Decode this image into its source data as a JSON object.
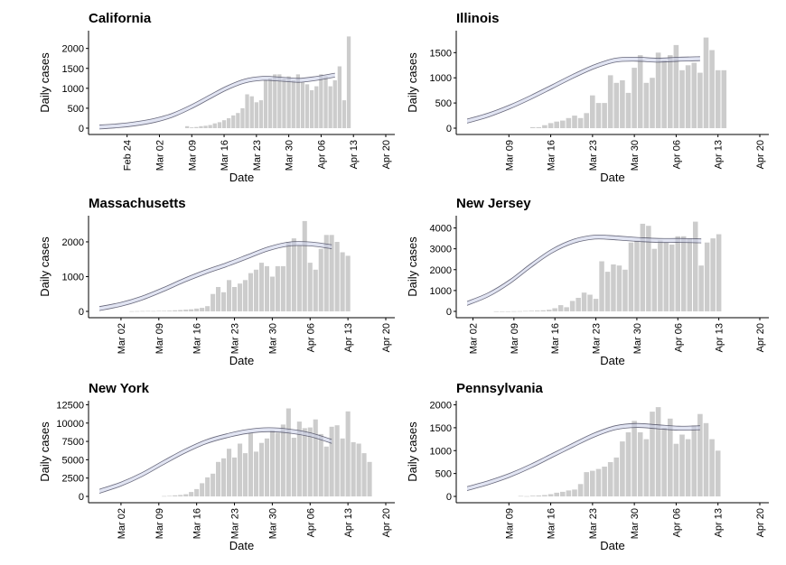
{
  "figure": {
    "xlabel": "Date",
    "ylabel": "Daily cases"
  },
  "chart_data": [
    {
      "type": "bar",
      "title": "California",
      "xlabel": "Date",
      "ylabel": "Daily cases",
      "x_start": "2020-02-18",
      "x_end": "2020-04-20",
      "ylim": [
        0,
        2400
      ],
      "x_ticks": [
        "Feb 24",
        "Mar 02",
        "Mar 09",
        "Mar 16",
        "Mar 23",
        "Mar 30",
        "Apr 06",
        "Apr 13",
        "Apr 20"
      ],
      "x_tick_dates": [
        "2020-02-24",
        "2020-03-02",
        "2020-03-09",
        "2020-03-16",
        "2020-03-23",
        "2020-03-30",
        "2020-04-06",
        "2020-04-13",
        "2020-04-20"
      ],
      "y_ticks": [
        0,
        500,
        1000,
        1500,
        2000
      ],
      "bars_start": "2020-03-08",
      "values": [
        50,
        20,
        30,
        50,
        60,
        80,
        120,
        150,
        200,
        250,
        320,
        380,
        500,
        850,
        800,
        650,
        700,
        1200,
        1250,
        1350,
        1350,
        1250,
        1300,
        1200,
        1350,
        1150,
        1100,
        950,
        1050,
        1350,
        1300,
        1050,
        1200,
        1550,
        700,
        2300
      ],
      "fit": {
        "start": "2020-02-18",
        "end": "2020-04-09",
        "values": [
          30,
          60,
          110,
          190,
          320,
          520,
          760,
          1000,
          1180,
          1250,
          1230,
          1200,
          1250,
          1330
        ]
      }
    },
    {
      "type": "bar",
      "title": "Illinois",
      "xlabel": "Date",
      "ylabel": "Daily cases",
      "x_start": "2020-03-02",
      "x_end": "2020-04-20",
      "ylim": [
        0,
        1900
      ],
      "x_ticks": [
        "Mar 09",
        "Mar 16",
        "Mar 23",
        "Mar 30",
        "Apr 06",
        "Apr 13",
        "Apr 20"
      ],
      "x_tick_dates": [
        "2020-03-09",
        "2020-03-16",
        "2020-03-23",
        "2020-03-30",
        "2020-04-06",
        "2020-04-13",
        "2020-04-20"
      ],
      "y_ticks": [
        0,
        500,
        1000,
        1500
      ],
      "bars_start": "2020-03-13",
      "values": [
        20,
        20,
        60,
        100,
        130,
        150,
        200,
        250,
        200,
        300,
        650,
        500,
        500,
        1050,
        900,
        950,
        700,
        1200,
        1450,
        900,
        1000,
        1500,
        1350,
        1450,
        1650,
        1150,
        1250,
        1300,
        1100,
        1800,
        1550,
        1150,
        1150
      ],
      "fit": {
        "start": "2020-03-02",
        "end": "2020-04-10",
        "values": [
          140,
          260,
          420,
          610,
          820,
          1030,
          1220,
          1350,
          1370,
          1350,
          1370,
          1380
        ]
      }
    },
    {
      "type": "bar",
      "title": "Massachusetts",
      "xlabel": "Date",
      "ylabel": "Daily cases",
      "x_start": "2020-02-27",
      "x_end": "2020-04-20",
      "ylim": [
        0,
        2700
      ],
      "x_ticks": [
        "Mar 02",
        "Mar 09",
        "Mar 16",
        "Mar 23",
        "Mar 30",
        "Apr 06",
        "Apr 13",
        "Apr 20"
      ],
      "x_tick_dates": [
        "2020-03-02",
        "2020-03-09",
        "2020-03-16",
        "2020-03-23",
        "2020-03-30",
        "2020-04-06",
        "2020-04-13",
        "2020-04-20"
      ],
      "y_ticks": [
        0,
        1000,
        2000
      ],
      "bars_start": "2020-03-04",
      "values": [
        5,
        8,
        10,
        12,
        10,
        15,
        15,
        20,
        30,
        40,
        50,
        60,
        80,
        100,
        150,
        500,
        700,
        550,
        900,
        700,
        800,
        900,
        1100,
        1200,
        1400,
        1300,
        1000,
        1300,
        1300,
        2000,
        2100,
        1900,
        2600,
        1400,
        1200,
        1800,
        2200,
        2200,
        2000,
        1700,
        1600
      ],
      "fit": {
        "start": "2020-02-27",
        "end": "2020-04-10",
        "values": [
          80,
          200,
          380,
          620,
          890,
          1130,
          1340,
          1570,
          1800,
          1940,
          1940,
          1860
        ]
      }
    },
    {
      "type": "bar",
      "title": "New Jersey",
      "xlabel": "Date",
      "ylabel": "Daily cases",
      "x_start": "2020-03-01",
      "x_end": "2020-04-20",
      "ylim": [
        0,
        4500
      ],
      "x_ticks": [
        "Mar 02",
        "Mar 09",
        "Mar 16",
        "Mar 23",
        "Mar 30",
        "Apr 06",
        "Apr 13",
        "Apr 20"
      ],
      "x_tick_dates": [
        "2020-03-02",
        "2020-03-09",
        "2020-03-16",
        "2020-03-23",
        "2020-03-30",
        "2020-04-06",
        "2020-04-13",
        "2020-04-20"
      ],
      "y_ticks": [
        0,
        1000,
        2000,
        3000,
        4000
      ],
      "bars_start": "2020-03-06",
      "values": [
        5,
        5,
        5,
        10,
        15,
        20,
        30,
        40,
        50,
        80,
        150,
        300,
        200,
        500,
        650,
        900,
        800,
        600,
        2400,
        1900,
        2250,
        2200,
        2000,
        3300,
        3400,
        4200,
        4100,
        3000,
        3400,
        3300,
        3200,
        3600,
        3600,
        3500,
        4300,
        2200,
        3300,
        3500,
        3700
      ],
      "fit": {
        "start": "2020-03-01",
        "end": "2020-04-10",
        "values": [
          380,
          800,
          1420,
          2200,
          2900,
          3360,
          3560,
          3520,
          3450,
          3400,
          3400,
          3380
        ]
      }
    },
    {
      "type": "bar",
      "title": "New York",
      "xlabel": "Date",
      "ylabel": "Daily cases",
      "x_start": "2020-02-27",
      "x_end": "2020-04-20",
      "ylim": [
        0,
        12800
      ],
      "x_ticks": [
        "Mar 02",
        "Mar 09",
        "Mar 16",
        "Mar 23",
        "Mar 30",
        "Apr 06",
        "Apr 13",
        "Apr 20"
      ],
      "x_tick_dates": [
        "2020-03-02",
        "2020-03-09",
        "2020-03-16",
        "2020-03-23",
        "2020-03-30",
        "2020-04-06",
        "2020-04-13",
        "2020-04-20"
      ],
      "y_ticks": [
        0,
        2500,
        5000,
        7500,
        10000,
        12500
      ],
      "bars_start": "2020-03-10",
      "values": [
        50,
        80,
        150,
        200,
        300,
        600,
        1000,
        1800,
        2600,
        3100,
        4700,
        5200,
        6500,
        5300,
        7200,
        5900,
        8600,
        6100,
        7300,
        7900,
        9000,
        8700,
        9800,
        12000,
        8000,
        10200,
        9300,
        9400,
        10500,
        8500,
        6800,
        9500,
        9700,
        7900,
        11600,
        7400,
        7200,
        5900,
        4700
      ],
      "fit": {
        "start": "2020-02-27",
        "end": "2020-04-10",
        "values": [
          700,
          1650,
          2950,
          4550,
          6100,
          7400,
          8250,
          8850,
          9100,
          8900,
          8400,
          7500
        ]
      }
    },
    {
      "type": "bar",
      "title": "Pennsylvania",
      "xlabel": "Date",
      "ylabel": "Daily cases",
      "x_start": "2020-03-02",
      "x_end": "2020-04-20",
      "ylim": [
        0,
        2050
      ],
      "x_ticks": [
        "Mar 09",
        "Mar 16",
        "Mar 23",
        "Mar 30",
        "Apr 06",
        "Apr 13",
        "Apr 20"
      ],
      "x_tick_dates": [
        "2020-03-09",
        "2020-03-16",
        "2020-03-23",
        "2020-03-30",
        "2020-04-06",
        "2020-04-13",
        "2020-04-20"
      ],
      "y_ticks": [
        0,
        500,
        1000,
        1500,
        2000
      ],
      "bars_start": "2020-03-11",
      "values": [
        10,
        5,
        15,
        20,
        30,
        50,
        80,
        100,
        130,
        150,
        270,
        530,
        560,
        600,
        650,
        750,
        850,
        1200,
        1400,
        1650,
        1400,
        1250,
        1850,
        1950,
        1500,
        1700,
        1150,
        1350,
        1250,
        1550,
        1800,
        1600,
        1250,
        1000
      ],
      "fit": {
        "start": "2020-03-02",
        "end": "2020-04-10",
        "values": [
          170,
          300,
          460,
          660,
          890,
          1120,
          1340,
          1500,
          1550,
          1520,
          1490,
          1500
        ]
      }
    }
  ]
}
